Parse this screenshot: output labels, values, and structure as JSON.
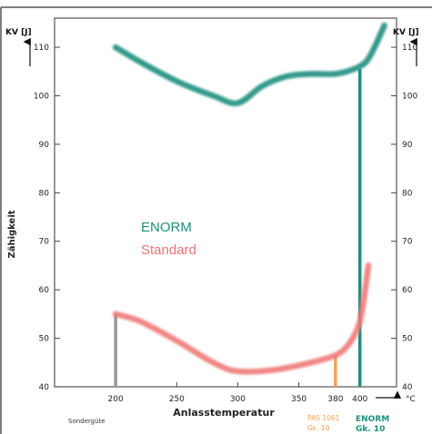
{
  "chart_data": {
    "type": "line",
    "xlabel": "Anlasstemperatur",
    "x_unit": "°C",
    "ylabel": "Zähigkeit",
    "y_unit_left": "KV [J]",
    "y_unit_right": "KV [J]",
    "xlim": [
      150,
      430
    ],
    "ylim": [
      40,
      116
    ],
    "x_ticks": [
      "200",
      "250",
      "300",
      "350",
      "380",
      "400"
    ],
    "y_ticks": [
      "40",
      "50",
      "60",
      "70",
      "80",
      "90",
      "100",
      "110"
    ],
    "series": [
      {
        "name": "ENORM",
        "color": "#1f8f7e",
        "x": [
          200,
          220,
          250,
          280,
          300,
          320,
          340,
          360,
          380,
          395,
          405,
          412,
          420
        ],
        "y": [
          110,
          107,
          103,
          100,
          98.5,
          102,
          104,
          104.5,
          104.5,
          105.5,
          107,
          110,
          114.5
        ]
      },
      {
        "name": "Standard",
        "color": "#f07a7a",
        "x": [
          200,
          220,
          250,
          280,
          300,
          330,
          360,
          380,
          390,
          398,
          402,
          407
        ],
        "y": [
          55,
          53.5,
          49.5,
          45,
          43.2,
          43.5,
          45,
          46.5,
          48.5,
          52,
          56,
          65
        ]
      }
    ],
    "markers": [
      {
        "x": 200,
        "y_top": 55,
        "color": "#9a9a9a",
        "label": "Sondergüte"
      },
      {
        "x": 380,
        "y_top": 46.5,
        "color": "#f5a050",
        "label_line1": "PAS 1061",
        "label_line2": "Gk. 10"
      },
      {
        "x": 400,
        "y_top": 105.5,
        "color": "#1f8f7e",
        "label_line1": "ENORM",
        "label_line2": "Gk. 10"
      }
    ],
    "legend": [
      {
        "label": "ENORM",
        "color": "#1f8f7e"
      },
      {
        "label": "Standard",
        "color": "#e87474"
      }
    ],
    "legend_position": "center-left",
    "grid": false
  }
}
